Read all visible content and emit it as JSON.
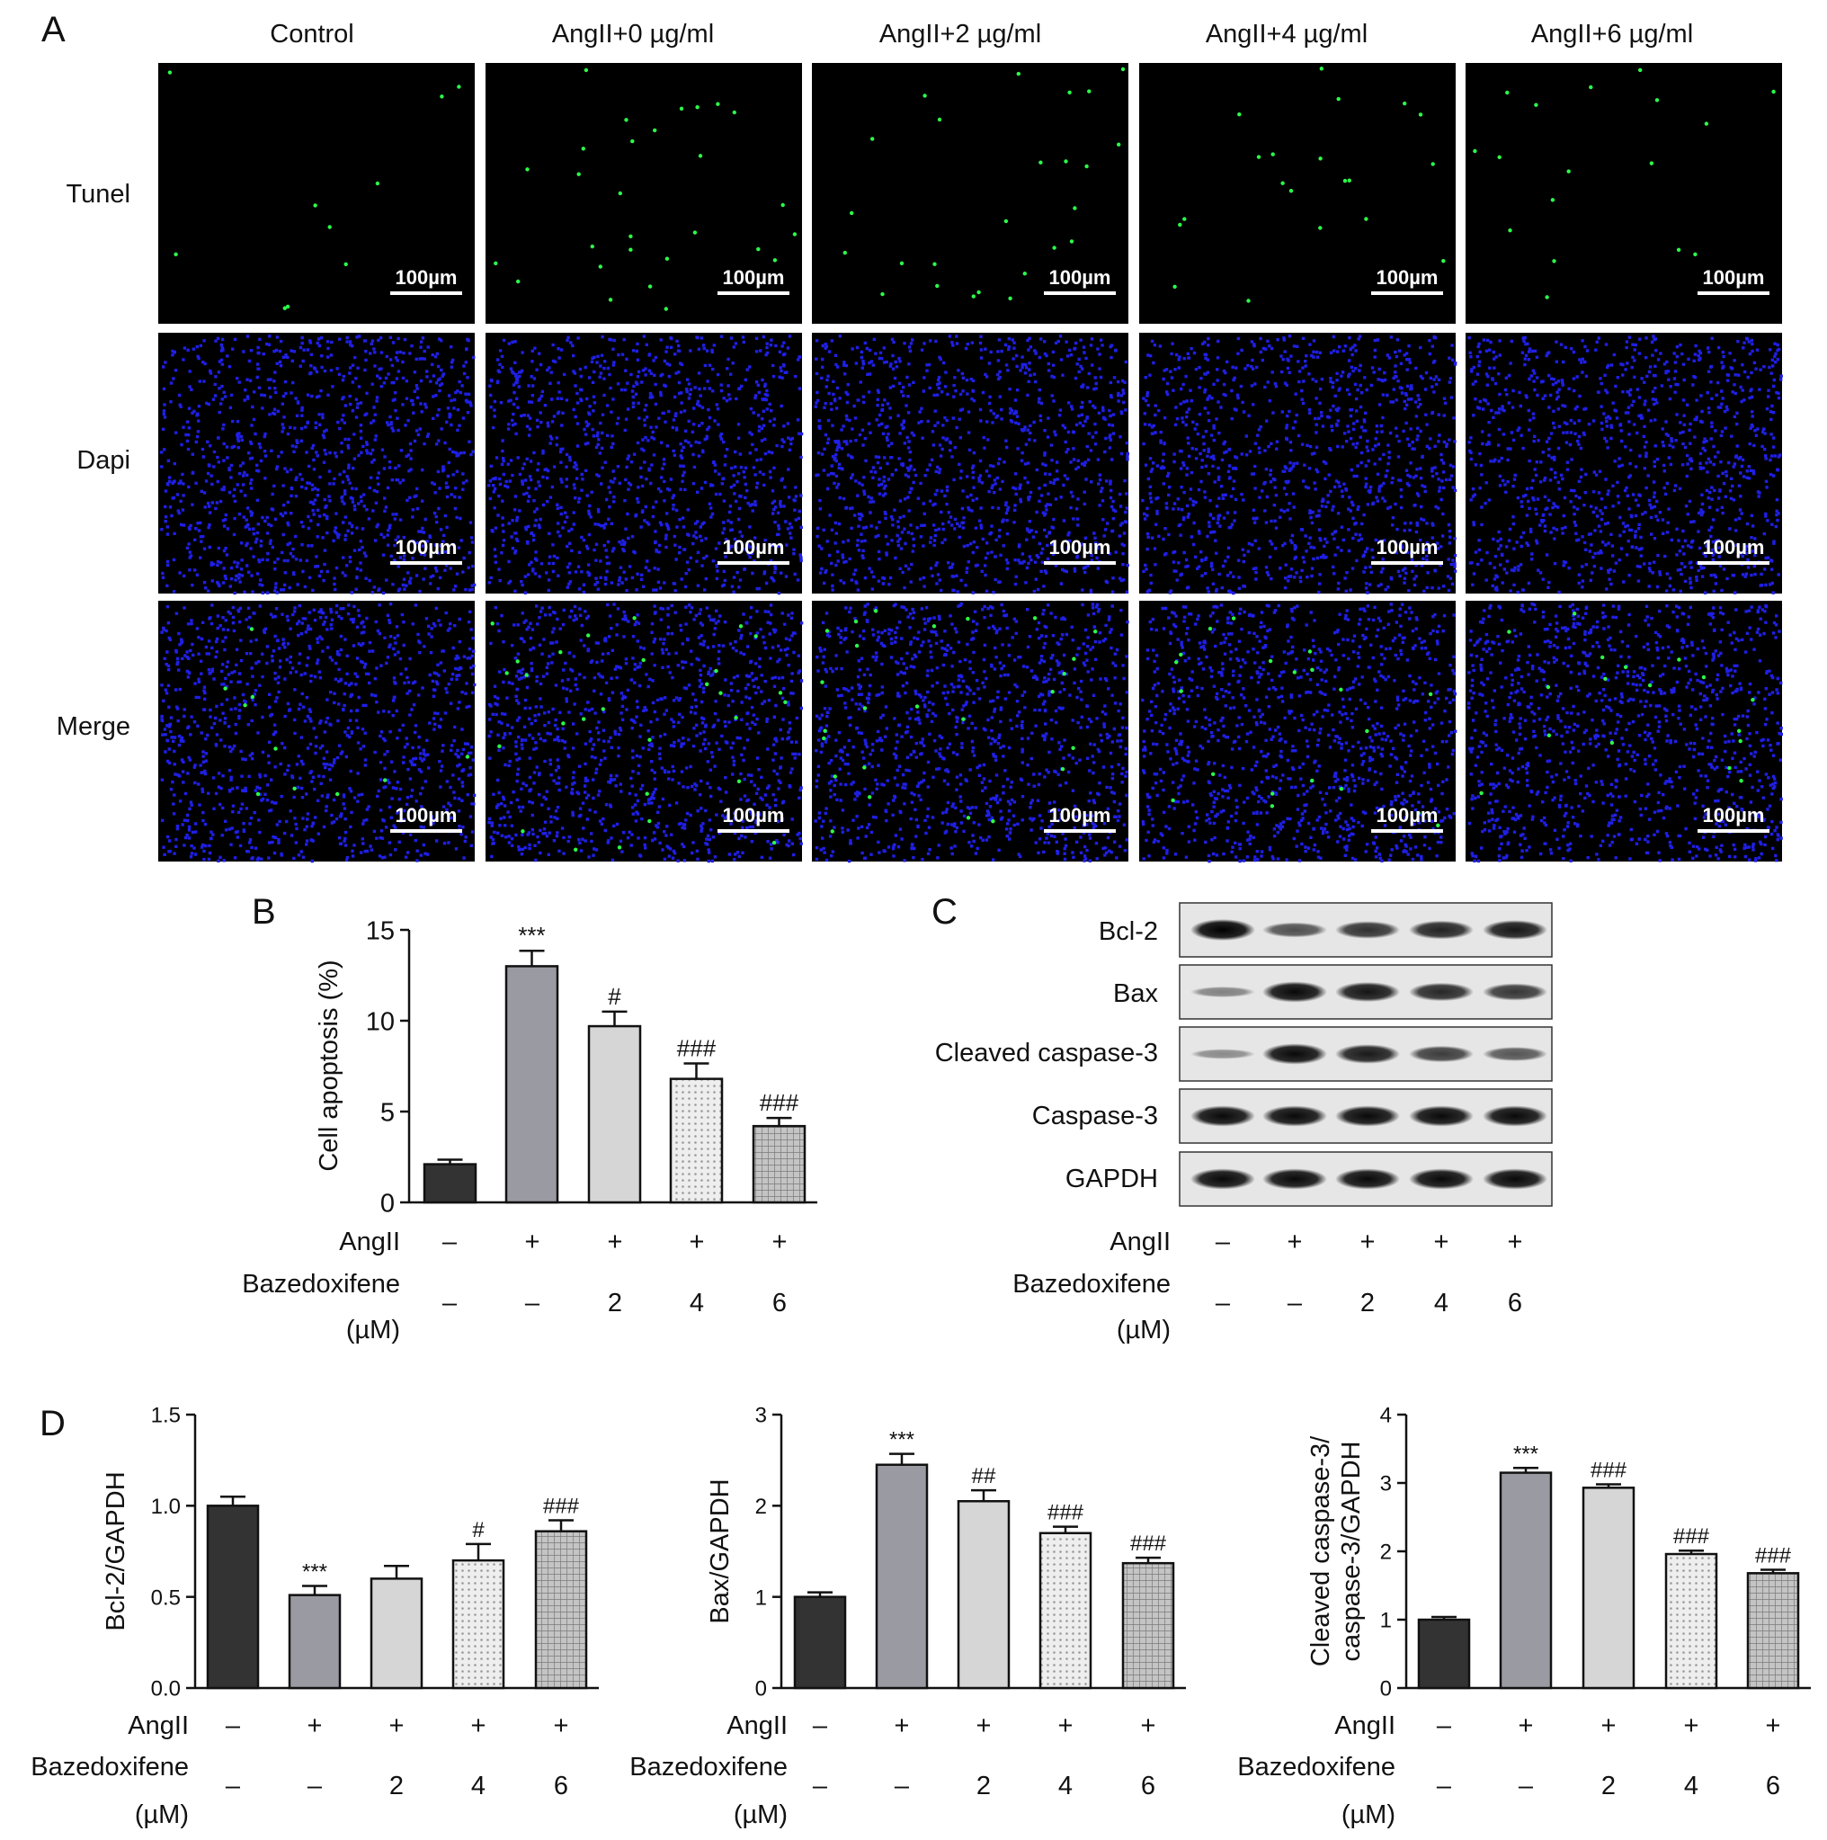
{
  "panel_letters": [
    "A",
    "B",
    "C",
    "D"
  ],
  "microscopy": {
    "columns": [
      "Control",
      "AngII+0 µg/ml",
      "AngII+2 µg/ml",
      "AngII+4 µg/ml",
      "AngII+6 µg/ml"
    ],
    "rows": [
      {
        "label": "Tunel",
        "stain": "tunel",
        "color": "#22ee22"
      },
      {
        "label": "Dapi",
        "stain": "dapi",
        "color": "#1a1aff"
      },
      {
        "label": "Merge",
        "stain": "merge",
        "color": "#1a1aff"
      }
    ],
    "scale_bar_label": "100µm",
    "tunel_positive_level": [
      0.15,
      0.9,
      0.8,
      0.6,
      0.45
    ]
  },
  "treatment_rows": {
    "row1_label": "AngII",
    "row2_label_line1": "Bazedoxifene",
    "row2_label_line2": "(µM)",
    "angii": [
      "–",
      "+",
      "+",
      "+",
      "+"
    ],
    "bzd": [
      "–",
      "–",
      "2",
      "4",
      "6"
    ]
  },
  "bar_styles": [
    {
      "fill": "#333333",
      "pattern": "none"
    },
    {
      "fill": "#9a9aa2",
      "pattern": "none"
    },
    {
      "fill": "#d6d6d6",
      "pattern": "none"
    },
    {
      "fill": "#ececec",
      "pattern": "dots"
    },
    {
      "fill": "#bdbdbd",
      "pattern": "grid"
    }
  ],
  "western_blot": {
    "bands": [
      "Bcl-2",
      "Bax",
      "Cleaved caspase-3",
      "Caspase-3",
      "GAPDH"
    ],
    "intensity": [
      [
        1.0,
        0.55,
        0.72,
        0.8,
        0.86
      ],
      [
        0.25,
        0.95,
        0.88,
        0.78,
        0.7
      ],
      [
        0.2,
        0.95,
        0.85,
        0.65,
        0.5
      ],
      [
        0.95,
        0.95,
        0.95,
        0.95,
        0.95
      ],
      [
        0.95,
        0.95,
        0.95,
        0.95,
        0.95
      ]
    ]
  },
  "chart_data": [
    {
      "id": "B",
      "type": "bar",
      "categories": [
        "1",
        "2",
        "3",
        "4",
        "5"
      ],
      "values": [
        2.1,
        13.0,
        9.7,
        6.8,
        4.2
      ],
      "errors": [
        0.25,
        0.85,
        0.8,
        0.85,
        0.45
      ],
      "annotations": [
        "",
        "***",
        "#",
        "###",
        "###"
      ],
      "ylabel": "Cell apoptosis (%)",
      "ylim": [
        0,
        15
      ],
      "yticks": [
        "0",
        "5",
        "10",
        "15"
      ]
    },
    {
      "id": "D1",
      "type": "bar",
      "categories": [
        "1",
        "2",
        "3",
        "4",
        "5"
      ],
      "values": [
        1.0,
        0.51,
        0.6,
        0.7,
        0.86
      ],
      "errors": [
        0.05,
        0.05,
        0.07,
        0.09,
        0.06
      ],
      "annotations": [
        "",
        "***",
        "",
        "#",
        "###"
      ],
      "ylabel": "Bcl-2/GAPDH",
      "ylim": [
        0,
        1.5
      ],
      "yticks": [
        "0.0",
        "0.5",
        "1.0",
        "1.5"
      ]
    },
    {
      "id": "D2",
      "type": "bar",
      "categories": [
        "1",
        "2",
        "3",
        "4",
        "5"
      ],
      "values": [
        1.0,
        2.45,
        2.05,
        1.7,
        1.37
      ],
      "errors": [
        0.05,
        0.12,
        0.12,
        0.07,
        0.06
      ],
      "annotations": [
        "",
        "***",
        "##",
        "###",
        "###"
      ],
      "ylabel": "Bax/GAPDH",
      "ylim": [
        0,
        3
      ],
      "yticks": [
        "0",
        "1",
        "2",
        "3"
      ]
    },
    {
      "id": "D3",
      "type": "bar",
      "categories": [
        "1",
        "2",
        "3",
        "4",
        "5"
      ],
      "values": [
        1.0,
        3.15,
        2.93,
        1.96,
        1.68
      ],
      "errors": [
        0.04,
        0.07,
        0.05,
        0.05,
        0.05
      ],
      "annotations": [
        "",
        "***",
        "###",
        "###",
        "###"
      ],
      "ylabel": "Cleaved caspase-3/ caspase-3/GAPDH",
      "ylabel_lines": [
        "Cleaved caspase-3/",
        "caspase-3/GAPDH"
      ],
      "ylim": [
        0,
        4
      ],
      "yticks": [
        "0",
        "1",
        "2",
        "3",
        "4"
      ]
    }
  ]
}
